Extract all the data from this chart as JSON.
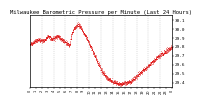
{
  "title": "Milwaukee Barometric Pressure per Minute (Last 24 Hours)",
  "line_color": "#dd0000",
  "bg_color": "#ffffff",
  "plot_bg": "#ffffff",
  "grid_color": "#bbbbbb",
  "ylim": [
    29.35,
    30.15
  ],
  "yticks": [
    29.4,
    29.5,
    29.6,
    29.7,
    29.8,
    29.9,
    30.0,
    30.1
  ],
  "ytick_labels": [
    "29.4",
    "29.5",
    "29.6",
    "29.7",
    "29.8",
    "29.9",
    "30.0",
    "30.1"
  ],
  "title_fontsize": 4.0,
  "tick_fontsize": 3.2,
  "num_vgridlines": 11,
  "pressure_curve": [
    [
      0,
      29.83
    ],
    [
      8,
      29.88
    ],
    [
      14,
      29.87
    ],
    [
      18,
      29.92
    ],
    [
      22,
      29.89
    ],
    [
      28,
      29.92
    ],
    [
      32,
      29.88
    ],
    [
      36,
      29.85
    ],
    [
      40,
      29.82
    ],
    [
      42,
      29.95
    ],
    [
      44,
      30.0
    ],
    [
      46,
      30.03
    ],
    [
      48,
      30.05
    ],
    [
      50,
      30.04
    ],
    [
      52,
      30.0
    ],
    [
      54,
      29.96
    ],
    [
      58,
      29.88
    ],
    [
      62,
      29.78
    ],
    [
      66,
      29.68
    ],
    [
      70,
      29.58
    ],
    [
      74,
      29.5
    ],
    [
      78,
      29.45
    ],
    [
      82,
      29.42
    ],
    [
      86,
      29.4
    ],
    [
      90,
      29.38
    ],
    [
      94,
      29.39
    ],
    [
      98,
      29.4
    ],
    [
      102,
      29.42
    ],
    [
      106,
      29.46
    ],
    [
      110,
      29.5
    ],
    [
      114,
      29.54
    ],
    [
      118,
      29.58
    ],
    [
      122,
      29.62
    ],
    [
      126,
      29.66
    ],
    [
      130,
      29.7
    ],
    [
      134,
      29.73
    ],
    [
      138,
      29.76
    ],
    [
      142,
      29.79
    ],
    [
      143,
      29.8
    ]
  ]
}
